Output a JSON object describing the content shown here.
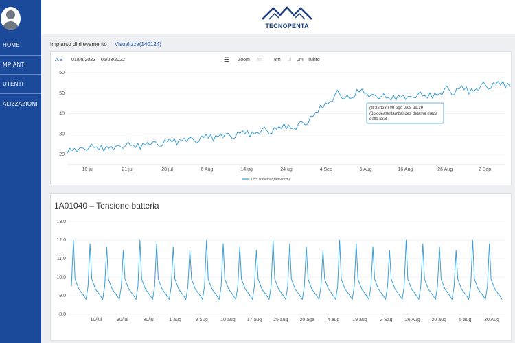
{
  "sidebar": {
    "items": [
      {
        "label": "HOME"
      },
      {
        "label": "MPIANTI"
      },
      {
        "label": "UTENTI"
      },
      {
        "label": "ALIZZAZIONI"
      }
    ]
  },
  "header": {
    "brand": "TECNOPENTA"
  },
  "breadcrumb": {
    "text": "Impianto di rilevamento",
    "link": "Visualizza(140124)"
  },
  "chart1": {
    "range_label": "A.S",
    "date_range": "01/08/2022 – 05/08/2022",
    "zoom_label": "Zoom",
    "zoom_buttons": [
      "/m",
      "8m",
      "ul",
      "0m",
      "Tuhto"
    ],
    "tooltip": [
      "(zl 32 to8 I 09 age 0/08 29.39",
      "(3piodeatentambal des detama meda",
      "della los8"
    ],
    "legend": "1mS l rsitemar(ramvir.cm)",
    "colors": {
      "line": "#3a9fd8"
    }
  },
  "chart2": {
    "title": "1A01040 – Tensione batteria",
    "colors": {
      "line": "#3a9fd8"
    }
  },
  "chart_data": [
    {
      "type": "line",
      "title": "",
      "xlabel": "",
      "ylabel": "",
      "ylim": [
        15,
        60
      ],
      "y_ticks": [
        "20",
        "30",
        "40",
        "50",
        "60"
      ],
      "x_ticks": [
        "10 jul",
        "21 jul",
        "28 jul",
        "6 Aug",
        "14 ug",
        "24 ug",
        "4 Sep",
        "5 Aug",
        "16 Aug",
        "26 Aug",
        "2 Sep"
      ],
      "series": [
        {
          "name": "1mS l rsitemar(ramvir.cm)",
          "values": [
            22,
            23,
            22,
            24,
            23,
            23,
            24,
            23,
            25,
            24,
            24,
            26,
            25,
            25,
            27,
            26,
            28,
            27,
            27,
            29,
            28,
            30,
            29,
            29,
            31,
            30,
            31,
            32,
            31,
            33,
            34,
            33,
            35,
            36,
            40,
            44,
            46,
            50,
            48,
            47,
            52,
            50,
            48,
            49,
            47,
            48,
            49,
            47,
            50,
            48,
            49,
            50,
            52,
            50,
            53,
            51,
            52,
            54,
            53,
            55,
            54
          ]
        }
      ]
    },
    {
      "type": "line",
      "title": "1A01040 – Tensione batteria",
      "xlabel": "",
      "ylabel": "",
      "ylim": [
        8,
        13
      ],
      "y_ticks": [
        "8.0",
        "9.0",
        "10.0",
        "11.0",
        "12.0",
        "13.0"
      ],
      "x_ticks": [
        "10/jul",
        "30/jul",
        "30/jul",
        "1 aug",
        "9 Sug",
        "10 aug",
        "17 aug",
        "25 aug",
        "20 äge",
        "4 aug",
        "19 aug",
        "2 Sag",
        "26 Aug",
        "20 aug",
        "5 äug",
        "30 Aug"
      ],
      "cycle": {
        "count": 26,
        "peak": 12.0,
        "trough": 8.8,
        "baseline": 9.5
      }
    }
  ]
}
